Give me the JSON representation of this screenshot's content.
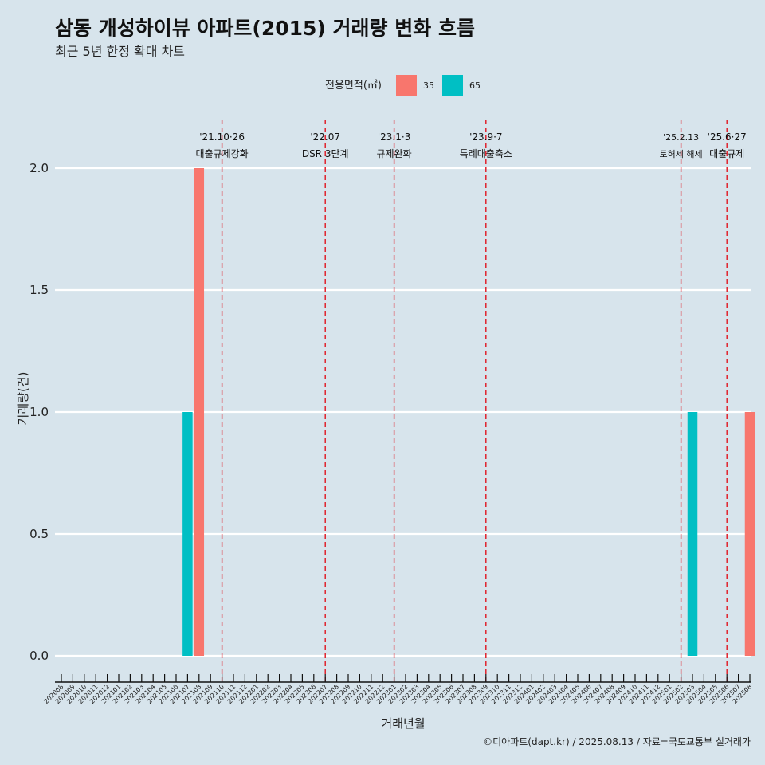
{
  "chart_data": {
    "type": "bar",
    "title": "삼동 개성하이뷰 아파트(2015) 거래량 변화 흐름",
    "subtitle": "최근 5년 한정 확대 차트",
    "xlabel": "거래년월",
    "ylabel": "거래량(건)",
    "ylim": [
      0,
      2
    ],
    "yticks": [
      "0.0",
      "0.5",
      "1.0",
      "1.5",
      "2.0"
    ],
    "grid": "horizontal",
    "legend": {
      "title": "전용면적(㎡)",
      "position": "top",
      "entries": [
        {
          "label": "35",
          "color": "#f8766d"
        },
        {
          "label": "65",
          "color": "#00bfc4"
        }
      ]
    },
    "categories": [
      "202008",
      "202009",
      "202010",
      "202011",
      "202012",
      "202101",
      "202102",
      "202103",
      "202104",
      "202105",
      "202106",
      "202107",
      "202108",
      "202109",
      "202110",
      "202111",
      "202112",
      "202201",
      "202202",
      "202203",
      "202204",
      "202205",
      "202206",
      "202207",
      "202208",
      "202209",
      "202210",
      "202211",
      "202212",
      "202301",
      "202302",
      "202303",
      "202304",
      "202305",
      "202306",
      "202307",
      "202308",
      "202309",
      "202310",
      "202311",
      "202312",
      "202401",
      "202402",
      "202403",
      "202404",
      "202405",
      "202406",
      "202407",
      "202408",
      "202409",
      "202410",
      "202411",
      "202412",
      "202501",
      "202502",
      "202503",
      "202504",
      "202505",
      "202506",
      "202507",
      "202508"
    ],
    "series": [
      {
        "name": "35",
        "color": "#f8766d",
        "points": [
          {
            "x": "202108",
            "y": 2
          },
          {
            "x": "202508",
            "y": 1
          }
        ]
      },
      {
        "name": "65",
        "color": "#00bfc4",
        "points": [
          {
            "x": "202107",
            "y": 1
          },
          {
            "x": "202503",
            "y": 1
          }
        ]
      }
    ],
    "events": [
      {
        "date_label": "'21.10·26",
        "text": "대출규제강화",
        "x": "202110"
      },
      {
        "date_label": "'22.07",
        "text": "DSR 3단계",
        "x": "202207"
      },
      {
        "date_label": "'23.1·3",
        "text": "규제완화",
        "x": "202301"
      },
      {
        "date_label": "'23.9·7",
        "text": "특례대출축소",
        "x": "202309"
      },
      {
        "date_label": "'25.2.13",
        "text": "토허제 해제",
        "x": "202502"
      },
      {
        "date_label": "'25.6·27",
        "text": "대출규제",
        "x": "202506"
      }
    ],
    "event_line_color": "#e0151f",
    "caption": "©디아파트(dapt.kr) / 2025.08.13 / 자료=국토교통부 실거래가"
  }
}
